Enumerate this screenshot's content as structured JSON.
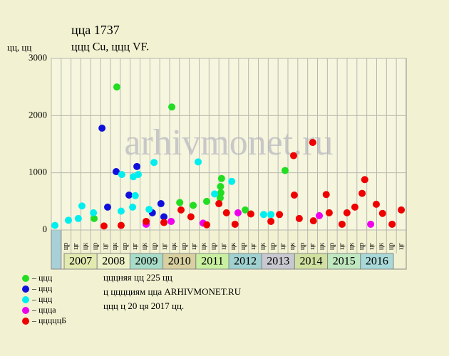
{
  "chart_data": {
    "type": "scatter",
    "title": "ццa 1737",
    "subtitle": "ццц Cu, ццц VF.",
    "y_label": "цц, цц",
    "watermark": "arhivmonet.ru",
    "xlim": [
      2006.61,
      2017.39
    ],
    "ylim": [
      0,
      3000
    ],
    "yticks": [
      0,
      1000,
      2000,
      3000
    ],
    "grid": true,
    "period_labels": [
      "цк",
      "цр",
      "цг",
      "цк",
      "цр",
      "цг",
      "цк",
      "цр",
      "цг",
      "цк",
      "цр",
      "цг",
      "цк",
      "цр",
      "цг",
      "цк",
      "цр",
      "цг",
      "цк",
      "цр",
      "цг",
      "цк",
      "цр",
      "цг",
      "цк",
      "цр",
      "цг",
      "цк",
      "цр",
      "цг",
      "цк",
      "цр",
      "цг",
      "цк",
      "цр",
      "цг"
    ],
    "years": [
      2007,
      2008,
      2009,
      2010,
      2011,
      2012,
      2013,
      2014,
      2015,
      2016
    ],
    "year_colors": [
      "#e2eab0",
      "#eef2c8",
      "#a8dcc8",
      "#d8d0a0",
      "#c8f0a0",
      "#a0d0d0",
      "#c8c8d0",
      "#d0e0a0",
      "#c0e8c0",
      "#a8d8d8"
    ],
    "series": [
      {
        "name": "– ццц",
        "color": "#22dd22",
        "x": [
          2008.6,
          2010.27,
          2011.78,
          2011.75,
          2011.76,
          2011.74,
          2013.71,
          2010.51,
          2010.92,
          2012.5,
          2007.91,
          2011.33
        ],
        "values": [
          2500,
          2150,
          900,
          760,
          650,
          560,
          1040,
          480,
          430,
          350,
          200,
          500
        ]
      },
      {
        "name": "– ццц",
        "color": "#1010dd",
        "x": [
          2008.15,
          2008.58,
          2009.21,
          2008.97,
          2008.32,
          2009.94,
          2009.68,
          2010.03
        ],
        "values": [
          1780,
          1020,
          1110,
          610,
          400,
          460,
          300,
          230
        ]
      },
      {
        "name": "– ццц",
        "color": "#00eeee",
        "x": [
          2006.72,
          2007.13,
          2007.54,
          2007.89,
          2008.75,
          2009.1,
          2009.25,
          2009.16,
          2008.73,
          2009.73,
          2009.58,
          2011.07,
          2011.57,
          2012.09,
          2013.06,
          2013.28,
          2007.43,
          2009.08
        ],
        "values": [
          80,
          170,
          420,
          300,
          970,
          930,
          970,
          600,
          330,
          1180,
          360,
          1190,
          630,
          850,
          270,
          270,
          200,
          400
        ]
      },
      {
        "name": "– цццa",
        "color": "#ee00ee",
        "x": [
          2009.49,
          2011.22,
          2012.28,
          2014.75,
          2016.31,
          2010.25
        ],
        "values": [
          100,
          120,
          300,
          250,
          100,
          150
        ]
      },
      {
        "name": "– цццццБ",
        "color": "#ee0000",
        "x": [
          2008.21,
          2008.73,
          2009.49,
          2010.55,
          2010.85,
          2011.7,
          2011.93,
          2012.67,
          2013.54,
          2013.97,
          2013.99,
          2014.55,
          2014.96,
          2015.05,
          2016.48,
          2016.13,
          2016.05,
          2015.59,
          2015.83,
          2016.67,
          2017.24,
          2016.96,
          2015.44,
          2013.28,
          2012.19,
          2014.14,
          2014.57,
          2010.03,
          2011.33
        ],
        "values": [
          70,
          80,
          150,
          350,
          230,
          460,
          300,
          280,
          270,
          1300,
          610,
          1530,
          620,
          300,
          450,
          880,
          640,
          300,
          400,
          290,
          350,
          100,
          100,
          150,
          100,
          200,
          160,
          130,
          90
        ]
      }
    ],
    "notes": [
      "цццняя цц 225 цц",
      "ц цццциям цца ARHIVMONET.RU",
      "ццц ц 20 ця 2017 цц."
    ]
  }
}
